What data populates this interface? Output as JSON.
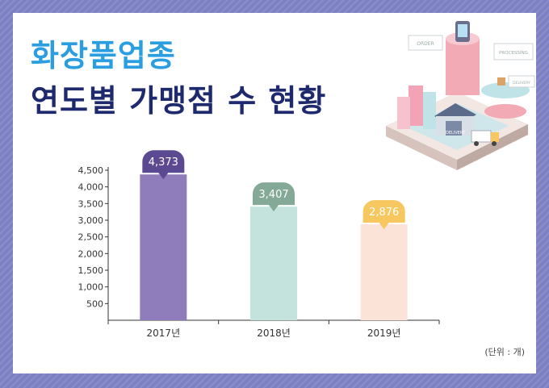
{
  "title_line1": "화장품업종",
  "title_line2": "연도별 가맹점 수 현황",
  "unit_note": "(단위 : 개)",
  "illustration": {
    "signs": [
      "ORDER",
      "PROCESSING",
      "DELIVERY",
      "DELIVERY"
    ]
  },
  "chart_data": {
    "type": "bar",
    "categories": [
      "2017년",
      "2018년",
      "2019년"
    ],
    "values": [
      4373,
      3407,
      2876
    ],
    "value_labels": [
      "4,373",
      "3,407",
      "2,876"
    ],
    "bar_colors": [
      "#8e7dba",
      "#c4e3dd",
      "#fce3d7"
    ],
    "badge_colors": [
      "#5b4a92",
      "#84a996",
      "#f6c85f"
    ],
    "ylim": [
      0,
      4500
    ],
    "yticks": [
      500,
      1000,
      1500,
      2000,
      2500,
      3000,
      3500,
      4000,
      4500
    ],
    "ytick_labels": [
      "500",
      "1,000",
      "1,500",
      "2,000",
      "2,500",
      "3,000",
      "3,500",
      "4,000",
      "4,500"
    ],
    "grid": false,
    "legend": "none"
  }
}
